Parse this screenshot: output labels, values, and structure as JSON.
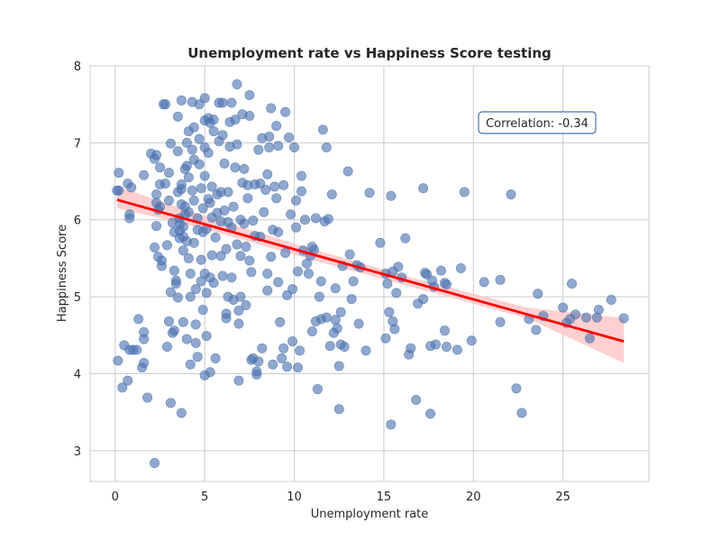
{
  "chart_data": {
    "type": "scatter",
    "title": "Unemployment rate vs Happiness Score testing",
    "xlabel": "Unemployment rate",
    "ylabel": "Happiness Score",
    "xlim": [
      -1.4,
      29.8
    ],
    "ylim": [
      2.6,
      8.0
    ],
    "xticks": [
      0,
      5,
      10,
      15,
      20,
      25
    ],
    "yticks": [
      3,
      4,
      5,
      6,
      7,
      8
    ],
    "grid": true,
    "annotation": "Correlation: -0.34",
    "colors": {
      "points": "#4c72b0",
      "regression": "#ff0000",
      "ci_band": "#ffc8c8",
      "grid": "#cccccc",
      "annotation_border": "#4c72b0"
    },
    "regression": {
      "x": [
        0.1,
        28.4
      ],
      "y": [
        6.26,
        4.42
      ],
      "ci_lower": [
        6.15,
        6.02,
        5.88,
        5.48,
        5.1,
        4.72,
        4.14
      ],
      "ci_upper": [
        6.44,
        6.24,
        6.05,
        5.62,
        5.22,
        4.86,
        4.72
      ],
      "ci_x": [
        0.1,
        2.5,
        5.0,
        11.0,
        17.0,
        23.0,
        28.4
      ]
    },
    "points": [
      [
        0.1,
        6.38
      ],
      [
        0.2,
        6.38
      ],
      [
        0.15,
        4.17
      ],
      [
        0.2,
        6.61
      ],
      [
        0.5,
        4.37
      ],
      [
        0.4,
        3.82
      ],
      [
        0.7,
        3.91
      ],
      [
        0.8,
        4.31
      ],
      [
        0.8,
        6.02
      ],
      [
        0.7,
        6.47
      ],
      [
        0.9,
        6.42
      ],
      [
        0.8,
        6.07
      ],
      [
        1.0,
        4.31
      ],
      [
        1.2,
        4.31
      ],
      [
        1.3,
        4.71
      ],
      [
        1.5,
        4.08
      ],
      [
        1.6,
        4.14
      ],
      [
        1.6,
        4.45
      ],
      [
        1.6,
        4.54
      ],
      [
        1.6,
        6.58
      ],
      [
        1.8,
        3.69
      ],
      [
        2.0,
        6.86
      ],
      [
        2.2,
        6.79
      ],
      [
        2.3,
        6.84
      ],
      [
        2.2,
        2.84
      ],
      [
        2.2,
        5.64
      ],
      [
        2.3,
        5.92
      ],
      [
        2.3,
        6.33
      ],
      [
        2.3,
        6.22
      ],
      [
        2.4,
        6.13
      ],
      [
        2.4,
        5.52
      ],
      [
        2.5,
        6.68
      ],
      [
        2.5,
        6.46
      ],
      [
        2.5,
        6.17
      ],
      [
        2.6,
        5.4
      ],
      [
        2.6,
        5.47
      ],
      [
        2.7,
        7.5
      ],
      [
        2.8,
        7.5
      ],
      [
        2.8,
        6.47
      ],
      [
        2.9,
        5.67
      ],
      [
        2.9,
        4.35
      ],
      [
        3.0,
        6.61
      ],
      [
        3.0,
        4.68
      ],
      [
        3.0,
        6.25
      ],
      [
        3.1,
        5.06
      ],
      [
        3.1,
        3.62
      ],
      [
        3.1,
        6.99
      ],
      [
        3.2,
        4.53
      ],
      [
        3.2,
        5.96
      ],
      [
        3.3,
        5.84
      ],
      [
        3.3,
        5.34
      ],
      [
        3.3,
        4.56
      ],
      [
        3.4,
        5.21
      ],
      [
        3.4,
        5.17
      ],
      [
        3.5,
        4.99
      ],
      [
        3.5,
        6.89
      ],
      [
        3.5,
        7.34
      ],
      [
        3.5,
        6.36
      ],
      [
        3.6,
        6.02
      ],
      [
        3.6,
        5.95
      ],
      [
        3.6,
        5.86
      ],
      [
        3.6,
        5.76
      ],
      [
        3.7,
        3.49
      ],
      [
        3.7,
        6.2
      ],
      [
        3.7,
        6.4
      ],
      [
        3.7,
        6.46
      ],
      [
        3.7,
        7.55
      ],
      [
        3.8,
        4.67
      ],
      [
        3.8,
        5.6
      ],
      [
        3.8,
        5.78
      ],
      [
        3.8,
        5.91
      ],
      [
        3.9,
        6.07
      ],
      [
        3.9,
        6.17
      ],
      [
        3.9,
        6.66
      ],
      [
        4.0,
        4.45
      ],
      [
        4.0,
        5.72
      ],
      [
        4.0,
        6.7
      ],
      [
        4.0,
        7.0
      ],
      [
        4.1,
        7.15
      ],
      [
        4.1,
        6.55
      ],
      [
        4.1,
        6.1
      ],
      [
        4.1,
        5.5
      ],
      [
        4.2,
        5.3
      ],
      [
        4.2,
        4.12
      ],
      [
        4.2,
        5.0
      ],
      [
        4.3,
        6.38
      ],
      [
        4.3,
        6.91
      ],
      [
        4.3,
        7.53
      ],
      [
        4.4,
        7.2
      ],
      [
        4.4,
        6.78
      ],
      [
        4.4,
        6.25
      ],
      [
        4.4,
        5.7
      ],
      [
        4.5,
        5.1
      ],
      [
        4.5,
        4.4
      ],
      [
        4.5,
        4.64
      ],
      [
        4.6,
        4.22
      ],
      [
        4.6,
        5.87
      ],
      [
        4.6,
        6.02
      ],
      [
        4.7,
        6.72
      ],
      [
        4.7,
        7.5
      ],
      [
        4.7,
        7.05
      ],
      [
        4.8,
        6.41
      ],
      [
        4.8,
        5.48
      ],
      [
        4.8,
        5.2
      ],
      [
        4.9,
        4.83
      ],
      [
        4.9,
        5.84
      ],
      [
        4.9,
        6.15
      ],
      [
        5.0,
        7.58
      ],
      [
        5.0,
        7.29
      ],
      [
        5.0,
        6.94
      ],
      [
        5.0,
        6.57
      ],
      [
        5.0,
        5.3
      ],
      [
        5.0,
        3.98
      ],
      [
        5.1,
        4.49
      ],
      [
        5.1,
        5.05
      ],
      [
        5.1,
        5.88
      ],
      [
        5.2,
        6.27
      ],
      [
        5.2,
        6.87
      ],
      [
        5.2,
        7.32
      ],
      [
        5.3,
        7.26
      ],
      [
        5.3,
        6.22
      ],
      [
        5.3,
        5.25
      ],
      [
        5.3,
        4.02
      ],
      [
        5.4,
        5.54
      ],
      [
        5.4,
        6.03
      ],
      [
        5.4,
        6.43
      ],
      [
        5.5,
        7.15
      ],
      [
        5.5,
        7.3
      ],
      [
        5.5,
        5.18
      ],
      [
        5.6,
        4.2
      ],
      [
        5.6,
        5.77
      ],
      [
        5.7,
        6.09
      ],
      [
        5.7,
        6.33
      ],
      [
        5.8,
        7.02
      ],
      [
        5.8,
        7.52
      ],
      [
        5.9,
        6.36
      ],
      [
        5.9,
        5.98
      ],
      [
        5.9,
        5.53
      ],
      [
        6.0,
        5.27
      ],
      [
        6.0,
        7.52
      ],
      [
        6.0,
        7.1
      ],
      [
        6.1,
        6.73
      ],
      [
        6.1,
        6.12
      ],
      [
        6.2,
        5.62
      ],
      [
        6.2,
        4.78
      ],
      [
        6.2,
        4.72
      ],
      [
        6.3,
        5.0
      ],
      [
        6.3,
        5.97
      ],
      [
        6.3,
        6.36
      ],
      [
        6.4,
        6.95
      ],
      [
        6.4,
        7.27
      ],
      [
        6.5,
        7.52
      ],
      [
        6.5,
        5.9
      ],
      [
        6.5,
        5.25
      ],
      [
        6.6,
        4.96
      ],
      [
        6.6,
        6.17
      ],
      [
        6.7,
        6.68
      ],
      [
        6.7,
        7.3
      ],
      [
        6.8,
        7.76
      ],
      [
        6.8,
        6.98
      ],
      [
        6.8,
        5.68
      ],
      [
        6.9,
        4.82
      ],
      [
        6.9,
        4.65
      ],
      [
        6.9,
        3.91
      ],
      [
        7.0,
        5.0
      ],
      [
        7.0,
        5.53
      ],
      [
        7.0,
        6.0
      ],
      [
        7.1,
        6.48
      ],
      [
        7.1,
        7.37
      ],
      [
        7.2,
        6.66
      ],
      [
        7.2,
        5.95
      ],
      [
        7.3,
        5.65
      ],
      [
        7.3,
        4.89
      ],
      [
        7.4,
        6.28
      ],
      [
        7.4,
        6.45
      ],
      [
        7.5,
        7.62
      ],
      [
        7.5,
        7.35
      ],
      [
        7.5,
        5.47
      ],
      [
        7.6,
        5.32
      ],
      [
        7.6,
        4.18
      ],
      [
        7.7,
        4.2
      ],
      [
        7.7,
        5.99
      ],
      [
        7.8,
        5.79
      ],
      [
        7.8,
        6.46
      ],
      [
        7.9,
        3.99
      ],
      [
        7.9,
        4.03
      ],
      [
        8.0,
        4.16
      ],
      [
        8.0,
        6.91
      ],
      [
        8.1,
        5.78
      ],
      [
        8.1,
        6.47
      ],
      [
        8.2,
        7.06
      ],
      [
        8.2,
        4.33
      ],
      [
        8.3,
        6.1
      ],
      [
        8.4,
        6.39
      ],
      [
        8.5,
        6.59
      ],
      [
        8.5,
        5.3
      ],
      [
        8.5,
        5.08
      ],
      [
        8.6,
        6.94
      ],
      [
        8.6,
        7.08
      ],
      [
        8.7,
        7.45
      ],
      [
        8.7,
        5.52
      ],
      [
        8.8,
        4.12
      ],
      [
        8.8,
        5.87
      ],
      [
        8.9,
        6.43
      ],
      [
        9.0,
        6.28
      ],
      [
        9.0,
        7.22
      ],
      [
        9.1,
        6.96
      ],
      [
        9.1,
        5.84
      ],
      [
        9.1,
        5.19
      ],
      [
        9.2,
        4.67
      ],
      [
        9.3,
        4.2
      ],
      [
        9.4,
        4.33
      ],
      [
        9.4,
        6.45
      ],
      [
        9.5,
        7.4
      ],
      [
        9.5,
        5.57
      ],
      [
        9.6,
        5.02
      ],
      [
        9.6,
        4.09
      ],
      [
        9.7,
        7.07
      ],
      [
        9.8,
        6.07
      ],
      [
        9.9,
        5.1
      ],
      [
        9.9,
        4.42
      ],
      [
        10.0,
        6.94
      ],
      [
        10.1,
        6.25
      ],
      [
        10.1,
        5.9
      ],
      [
        10.2,
        5.33
      ],
      [
        10.2,
        4.08
      ],
      [
        10.3,
        4.3
      ],
      [
        10.4,
        6.37
      ],
      [
        10.4,
        6.57
      ],
      [
        10.5,
        5.6
      ],
      [
        10.6,
        6.0
      ],
      [
        10.7,
        5.43
      ],
      [
        10.8,
        5.3
      ],
      [
        10.9,
        5.53
      ],
      [
        11.0,
        4.55
      ],
      [
        11.0,
        5.65
      ],
      [
        11.1,
        5.61
      ],
      [
        11.2,
        6.02
      ],
      [
        11.2,
        4.68
      ],
      [
        11.3,
        3.8
      ],
      [
        11.4,
        5.0
      ],
      [
        11.5,
        4.71
      ],
      [
        11.5,
        5.2
      ],
      [
        11.6,
        7.17
      ],
      [
        11.7,
        5.98
      ],
      [
        11.8,
        6.94
      ],
      [
        11.8,
        4.73
      ],
      [
        11.9,
        6.01
      ],
      [
        12.0,
        4.36
      ],
      [
        12.1,
        6.33
      ],
      [
        12.2,
        4.53
      ],
      [
        12.3,
        4.7
      ],
      [
        12.3,
        5.11
      ],
      [
        12.4,
        4.59
      ],
      [
        12.5,
        4.1
      ],
      [
        12.5,
        3.54
      ],
      [
        12.6,
        4.8
      ],
      [
        12.6,
        4.38
      ],
      [
        12.7,
        5.4
      ],
      [
        12.8,
        4.35
      ],
      [
        13.0,
        6.63
      ],
      [
        13.1,
        5.55
      ],
      [
        13.2,
        4.97
      ],
      [
        13.3,
        5.2
      ],
      [
        13.5,
        5.41
      ],
      [
        13.6,
        4.65
      ],
      [
        13.7,
        5.38
      ],
      [
        14.0,
        4.3
      ],
      [
        14.2,
        6.35
      ],
      [
        14.8,
        5.7
      ],
      [
        15.1,
        5.3
      ],
      [
        15.1,
        4.46
      ],
      [
        15.2,
        5.17
      ],
      [
        15.3,
        4.8
      ],
      [
        15.4,
        6.31
      ],
      [
        15.4,
        3.34
      ],
      [
        15.5,
        4.68
      ],
      [
        15.5,
        5.33
      ],
      [
        15.6,
        4.58
      ],
      [
        15.7,
        5.05
      ],
      [
        15.8,
        5.39
      ],
      [
        16.0,
        5.25
      ],
      [
        16.2,
        5.76
      ],
      [
        16.4,
        4.25
      ],
      [
        16.5,
        4.33
      ],
      [
        16.8,
        3.66
      ],
      [
        16.9,
        4.91
      ],
      [
        17.2,
        6.41
      ],
      [
        17.2,
        4.97
      ],
      [
        17.3,
        5.31
      ],
      [
        17.4,
        5.29
      ],
      [
        17.6,
        3.48
      ],
      [
        17.6,
        4.36
      ],
      [
        17.7,
        5.21
      ],
      [
        17.8,
        5.13
      ],
      [
        17.9,
        4.38
      ],
      [
        18.2,
        5.34
      ],
      [
        18.4,
        5.18
      ],
      [
        18.4,
        4.56
      ],
      [
        18.5,
        5.16
      ],
      [
        18.5,
        4.35
      ],
      [
        19.1,
        4.31
      ],
      [
        19.3,
        5.37
      ],
      [
        19.5,
        6.36
      ],
      [
        19.9,
        4.43
      ],
      [
        20.6,
        5.19
      ],
      [
        21.5,
        5.22
      ],
      [
        21.5,
        4.67
      ],
      [
        22.1,
        6.33
      ],
      [
        22.4,
        3.81
      ],
      [
        22.7,
        3.49
      ],
      [
        23.1,
        4.71
      ],
      [
        23.5,
        4.57
      ],
      [
        23.6,
        5.04
      ],
      [
        23.9,
        4.75
      ],
      [
        25.0,
        4.86
      ],
      [
        25.2,
        4.66
      ],
      [
        25.4,
        4.71
      ],
      [
        25.5,
        5.17
      ],
      [
        25.7,
        4.77
      ],
      [
        26.3,
        4.73
      ],
      [
        26.5,
        4.46
      ],
      [
        26.9,
        4.73
      ],
      [
        27.0,
        4.83
      ],
      [
        27.7,
        4.96
      ],
      [
        28.4,
        4.72
      ]
    ]
  }
}
